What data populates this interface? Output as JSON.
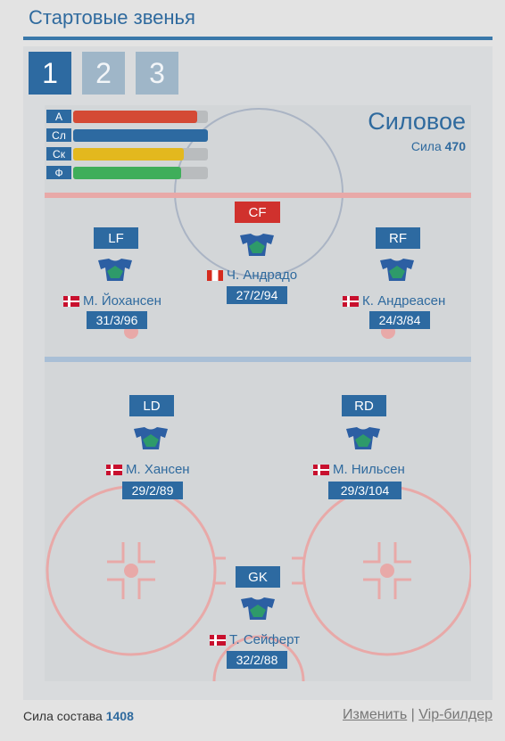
{
  "title": "Стартовые звенья",
  "tabs": [
    {
      "label": "1",
      "active": true
    },
    {
      "label": "2",
      "active": false
    },
    {
      "label": "3",
      "active": false
    }
  ],
  "stats": [
    {
      "label": "А",
      "value": 92,
      "color": "#d44a35"
    },
    {
      "label": "Сл",
      "value": 100,
      "color": "#2d6aa1"
    },
    {
      "label": "Ск",
      "value": 82,
      "color": "#e3b81e"
    },
    {
      "label": "Ф",
      "value": 80,
      "color": "#3fae5a"
    }
  ],
  "line": {
    "name": "Силовое",
    "power_label": "Сила",
    "power_value": "470"
  },
  "players": {
    "cf": {
      "pos": "CF",
      "name": "Ч. Андрадо",
      "stats": "27/2/94",
      "flag": "ca"
    },
    "lf": {
      "pos": "LF",
      "name": "М. Йохансен",
      "stats": "31/3/96",
      "flag": "dk"
    },
    "rf": {
      "pos": "RF",
      "name": "К. Андреасен",
      "stats": "24/3/84",
      "flag": "dk"
    },
    "ld": {
      "pos": "LD",
      "name": "М. Хансен",
      "stats": "29/2/89",
      "flag": "dk"
    },
    "rd": {
      "pos": "RD",
      "name": "М. Нильсен",
      "stats": "29/3/104",
      "flag": "dk"
    },
    "gk": {
      "pos": "GK",
      "name": "Т. Сейферт",
      "stats": "32/2/88",
      "flag": "dk"
    }
  },
  "footer": {
    "total_label": "Сила состава",
    "total_value": "1408",
    "edit_link": "Изменить",
    "separator": "|",
    "vip_link": "Vip-билдер"
  },
  "colors": {
    "accent": "#2d6aa1",
    "center_badge": "#d0312d"
  }
}
